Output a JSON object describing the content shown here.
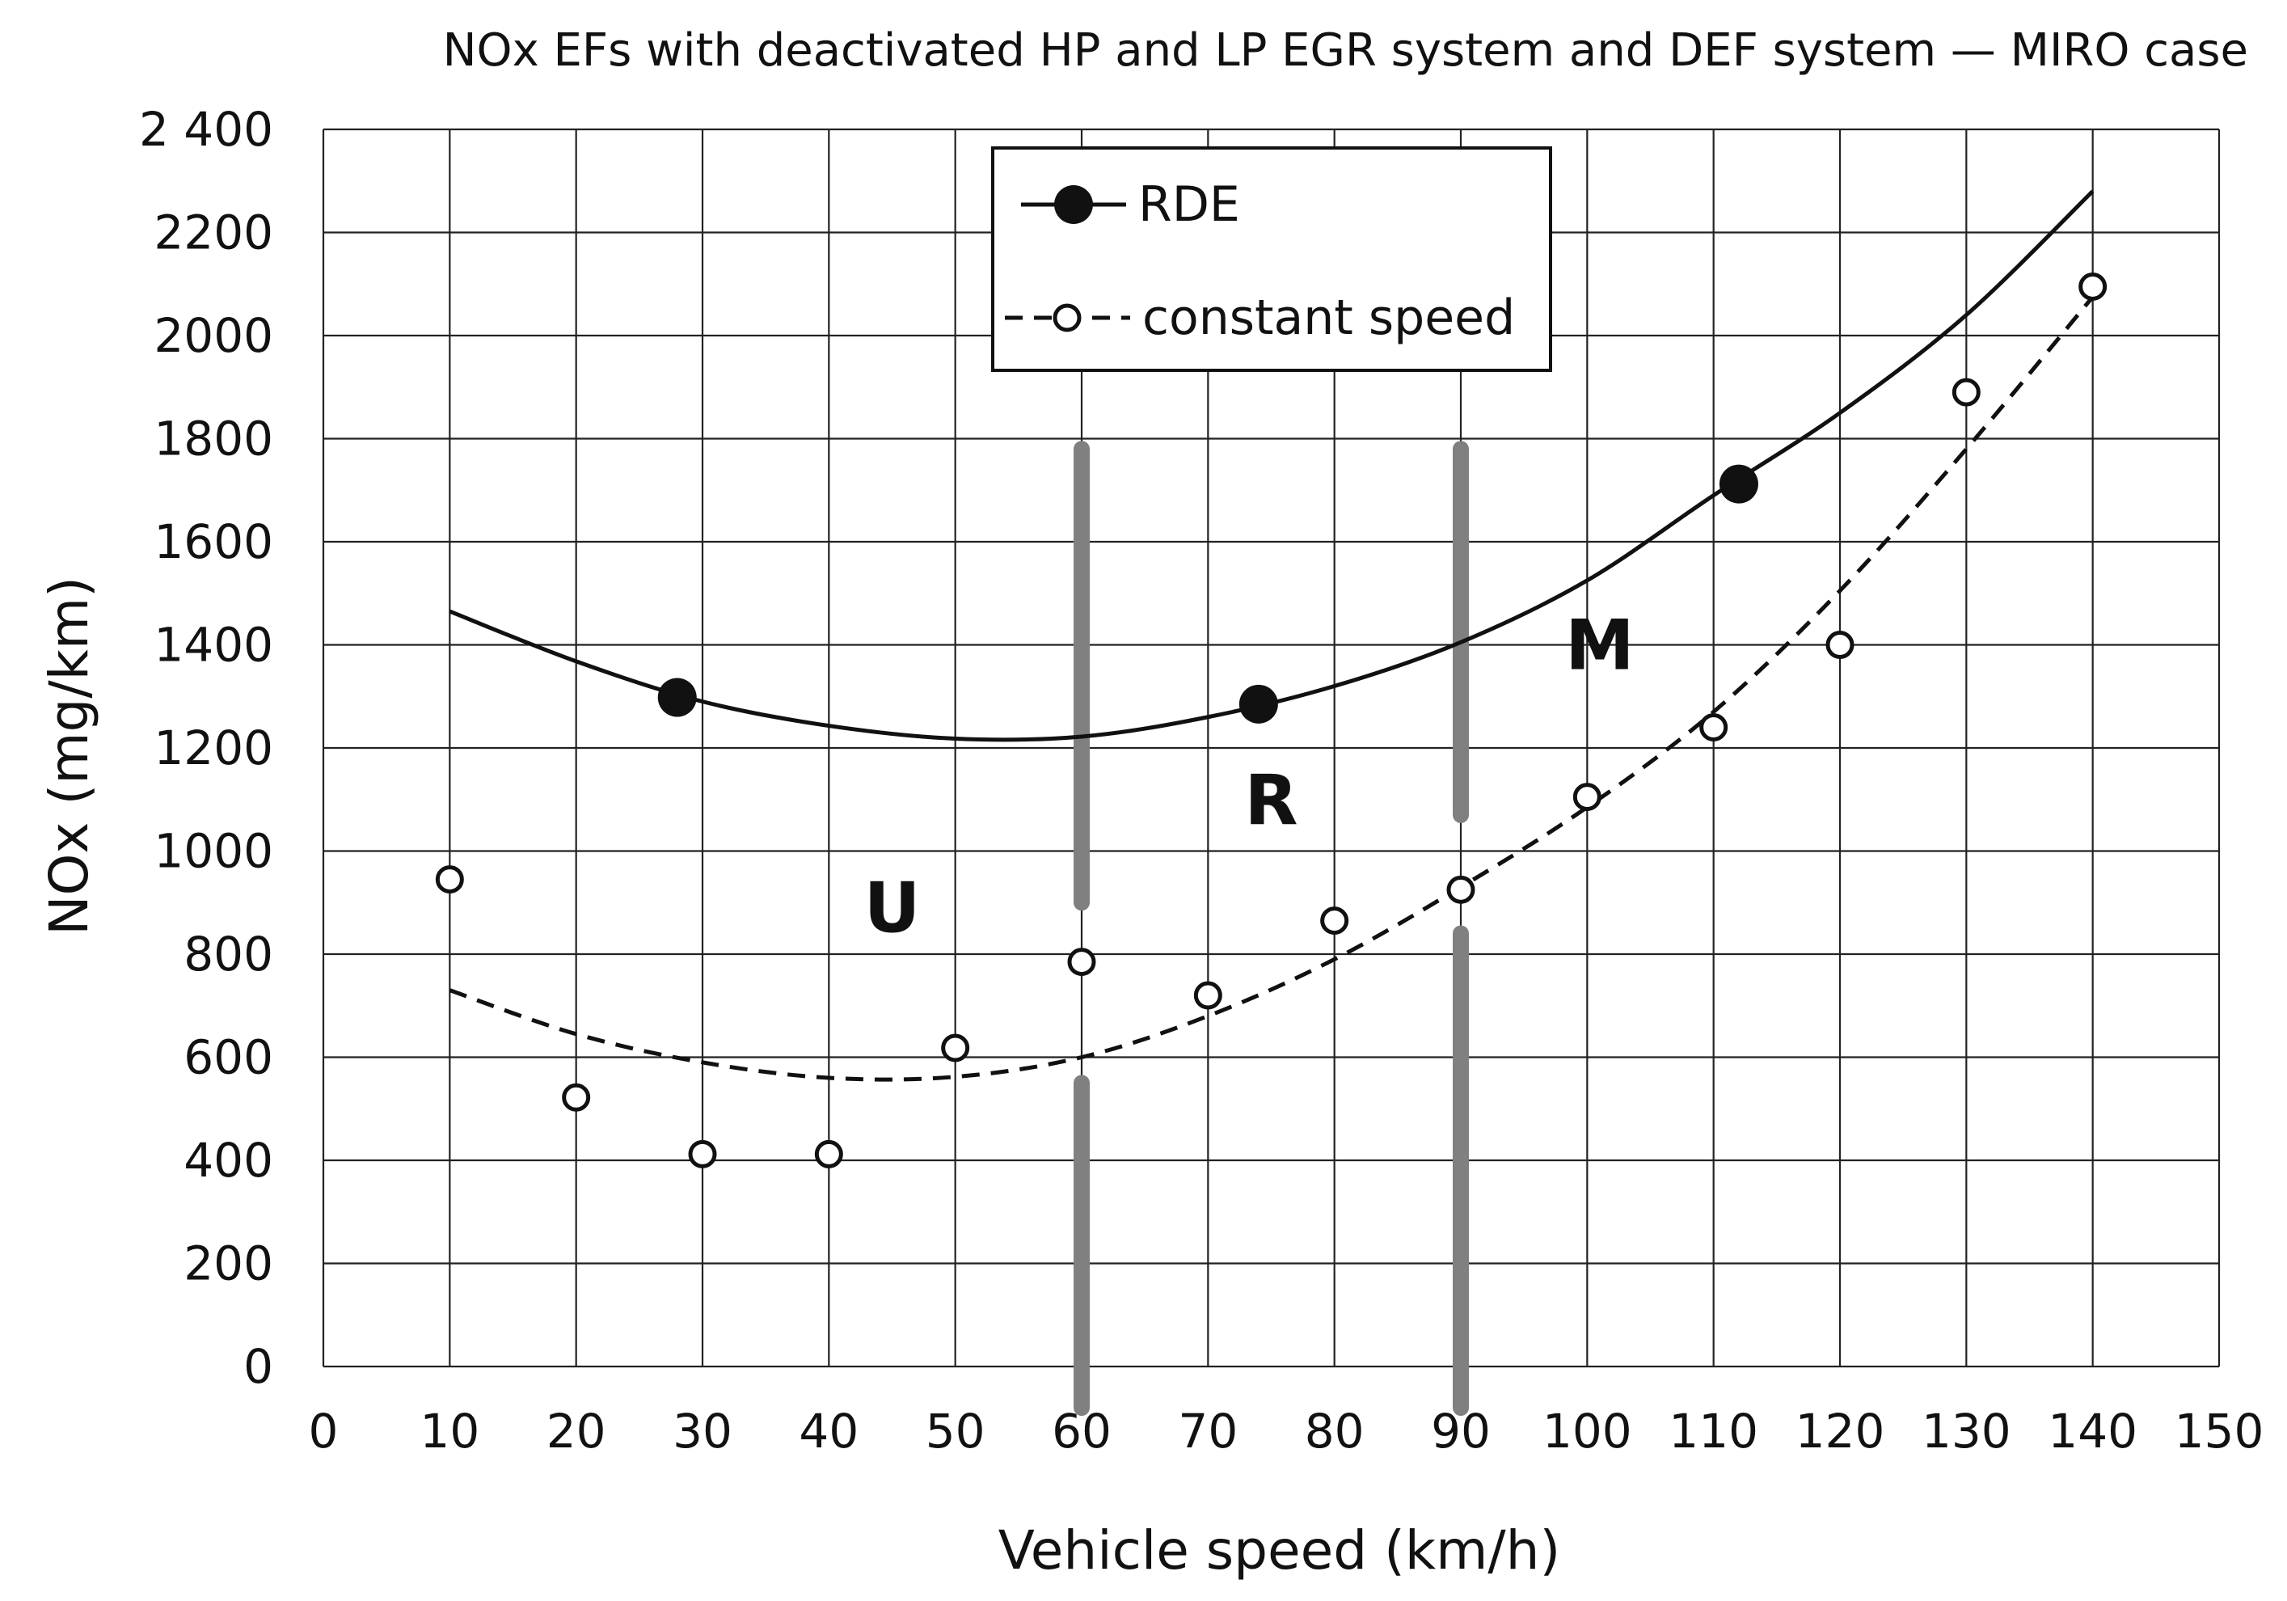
{
  "chart_data": {
    "type": "scatter",
    "title": "NOx EFs with deactivated HP and LP EGR system and DEF system — MIRO case",
    "xlabel": "Vehicle speed (km/h)",
    "ylabel": "NOx (mg/km)",
    "xlim": [
      0,
      150
    ],
    "ylim": [
      0,
      2400
    ],
    "xticks": [
      0,
      10,
      20,
      30,
      40,
      50,
      60,
      70,
      80,
      90,
      100,
      110,
      120,
      130,
      140,
      150
    ],
    "yticks": [
      0,
      200,
      400,
      600,
      800,
      1000,
      1200,
      1400,
      1600,
      1800,
      2000,
      2200,
      2400
    ],
    "ytick_labels": [
      "0",
      "200",
      "400",
      "600",
      "800",
      "1000",
      "1200",
      "1400",
      "1600",
      "1800",
      "2000",
      "2200",
      "2 400"
    ],
    "grid": true,
    "legend_position": "top-center",
    "series": [
      {
        "name": "RDE",
        "marker": "filled-circle",
        "line": "solid",
        "points": [
          [
            28,
            1298
          ],
          [
            74,
            1285
          ],
          [
            112,
            1712
          ]
        ],
        "trend": [
          [
            10,
            1465
          ],
          [
            20,
            1368
          ],
          [
            30,
            1290
          ],
          [
            40,
            1243
          ],
          [
            50,
            1218
          ],
          [
            60,
            1222
          ],
          [
            70,
            1260
          ],
          [
            80,
            1320
          ],
          [
            90,
            1405
          ],
          [
            100,
            1525
          ],
          [
            110,
            1690
          ],
          [
            120,
            1850
          ],
          [
            130,
            2040
          ],
          [
            140,
            2280
          ]
        ]
      },
      {
        "name": "constant speed",
        "marker": "open-circle",
        "line": "dashed",
        "points": [
          [
            10,
            945
          ],
          [
            20,
            522
          ],
          [
            30,
            412
          ],
          [
            40,
            412
          ],
          [
            50,
            618
          ],
          [
            60,
            785
          ],
          [
            70,
            720
          ],
          [
            80,
            865
          ],
          [
            90,
            925
          ],
          [
            100,
            1105
          ],
          [
            110,
            1240
          ],
          [
            120,
            1400
          ],
          [
            130,
            1890
          ],
          [
            140,
            2095
          ]
        ],
        "trend": [
          [
            10,
            730
          ],
          [
            20,
            645
          ],
          [
            30,
            590
          ],
          [
            40,
            560
          ],
          [
            50,
            562
          ],
          [
            60,
            600
          ],
          [
            70,
            680
          ],
          [
            80,
            790
          ],
          [
            90,
            930
          ],
          [
            100,
            1085
          ],
          [
            110,
            1270
          ],
          [
            120,
            1505
          ],
          [
            130,
            1780
          ],
          [
            140,
            2075
          ]
        ]
      }
    ],
    "zones": [
      {
        "label": "U",
        "x": 45,
        "y": 890
      },
      {
        "label": "R",
        "x": 75,
        "y": 1100
      },
      {
        "label": "M",
        "x": 101,
        "y": 1400
      }
    ],
    "boundaries": [
      {
        "x": 60,
        "segments": [
          [
            1780,
            900
          ],
          [
            550,
            -80
          ]
        ]
      },
      {
        "x": 90,
        "segments": [
          [
            1780,
            1070
          ],
          [
            840,
            -80
          ]
        ]
      }
    ],
    "colors": {
      "line": "#111111",
      "grid": "#222222",
      "boundary": "#808080",
      "background": "#ffffff"
    }
  }
}
